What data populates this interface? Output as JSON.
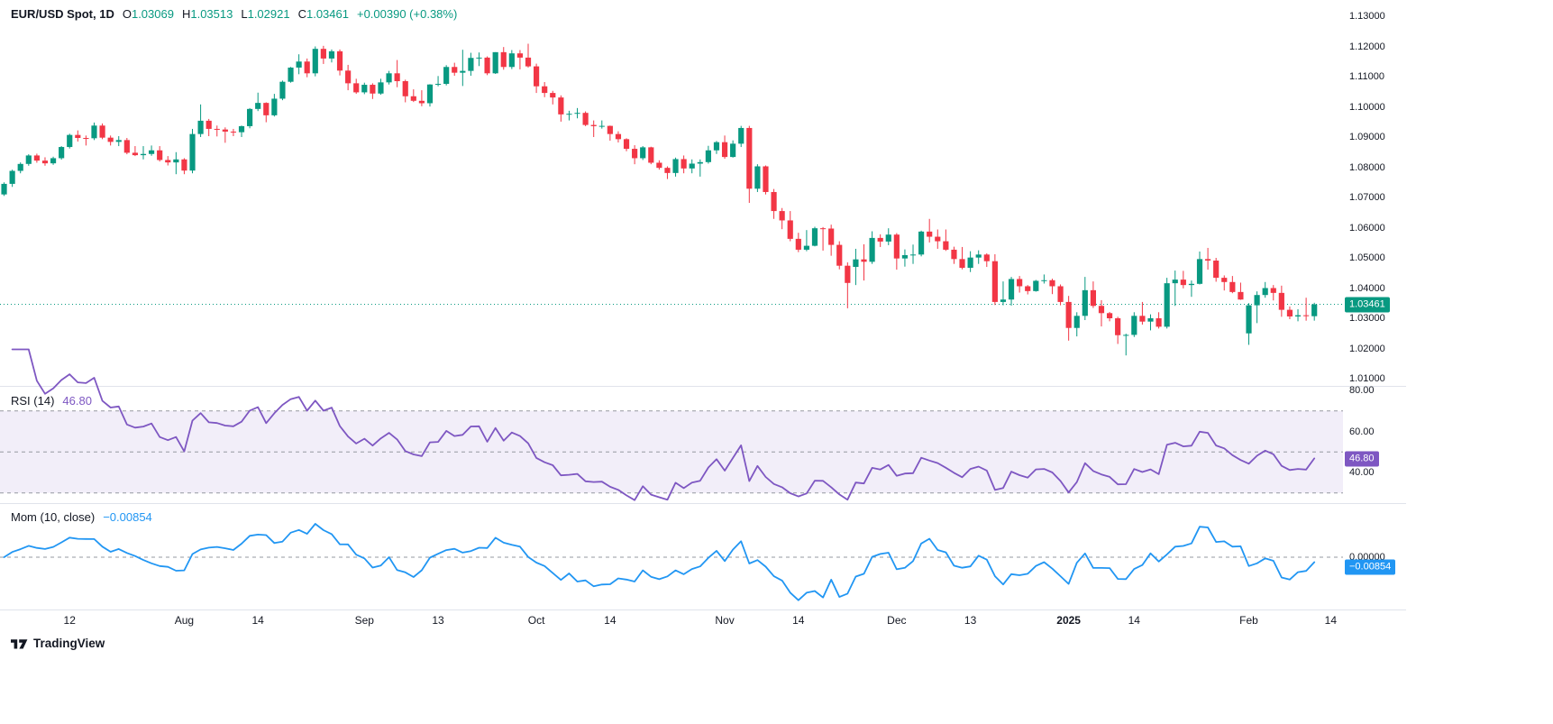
{
  "header": {
    "symbol_title": "EUR/USD Spot, 1D",
    "open_key": "O",
    "open_val": "1.03069",
    "high_key": "H",
    "high_val": "1.03513",
    "low_key": "L",
    "low_val": "1.02921",
    "close_key": "C",
    "close_val": "1.03461",
    "change_val": "+0.00390 (+0.38%)"
  },
  "colors": {
    "up": "#089981",
    "down": "#F23645",
    "rsi": "#7E57C2",
    "mom": "#2196F3",
    "grid": "#9598A1",
    "separator": "#E0E3EB",
    "text": "#131722"
  },
  "rsi_legend": {
    "title": "RSI (14)",
    "value": "46.80"
  },
  "mom_legend": {
    "title": "Mom (10, close)",
    "value": "−0.00854"
  },
  "price_axis": {
    "labels": [
      "1.13000",
      "1.12000",
      "1.11000",
      "1.10000",
      "1.09000",
      "1.08000",
      "1.07000",
      "1.06000",
      "1.05000",
      "1.04000",
      "1.03000",
      "1.02000",
      "1.01000"
    ],
    "last_label": "1.03461"
  },
  "rsi_axis": {
    "labels": [
      "80.00",
      "60.00",
      "40.00"
    ],
    "last_label": "46.80"
  },
  "mom_axis": {
    "zero_label": "0.00000",
    "last_label": "−0.00854"
  },
  "time_axis": {
    "ticks": [
      {
        "label": "12",
        "index": 8,
        "bold": false
      },
      {
        "label": "Aug",
        "index": 22,
        "bold": false
      },
      {
        "label": "14",
        "index": 31,
        "bold": false
      },
      {
        "label": "Sep",
        "index": 44,
        "bold": false
      },
      {
        "label": "13",
        "index": 53,
        "bold": false
      },
      {
        "label": "Oct",
        "index": 65,
        "bold": false
      },
      {
        "label": "14",
        "index": 74,
        "bold": false
      },
      {
        "label": "Nov",
        "index": 88,
        "bold": false
      },
      {
        "label": "14",
        "index": 97,
        "bold": false
      },
      {
        "label": "Dec",
        "index": 109,
        "bold": false
      },
      {
        "label": "13",
        "index": 118,
        "bold": false
      },
      {
        "label": "2025",
        "index": 130,
        "bold": true
      },
      {
        "label": "14",
        "index": 138,
        "bold": false
      },
      {
        "label": "Feb",
        "index": 152,
        "bold": false
      },
      {
        "label": "14",
        "index": 162,
        "bold": false
      }
    ]
  },
  "watermark": {
    "brand": "TradingView"
  },
  "chart_data": {
    "type": "candlestick",
    "symbol": "EUR/USD Spot",
    "interval": "1D",
    "slots": 164,
    "price_axis_range": [
      1.01,
      1.13
    ],
    "last_candle": {
      "open": 1.03069,
      "high": 1.03513,
      "low": 1.02921,
      "close": 1.03461,
      "change": 0.0039,
      "change_pct": 0.38
    },
    "indicators": [
      {
        "type": "rsi",
        "period": 14,
        "last": 46.8,
        "band": [
          30,
          70
        ],
        "mid": 50,
        "levels": [
          80,
          60,
          40
        ]
      },
      {
        "type": "momentum",
        "period": 10,
        "source": "close",
        "last": -0.00854,
        "zero": 0
      }
    ],
    "ohlc": [
      [
        1.071,
        1.075,
        1.0705,
        1.0745
      ],
      [
        1.0745,
        1.0792,
        1.0735,
        1.0788
      ],
      [
        1.0788,
        1.0816,
        1.078,
        1.0811
      ],
      [
        1.0811,
        1.0843,
        1.0805,
        1.0839
      ],
      [
        1.0839,
        1.0845,
        1.0815,
        1.0822
      ],
      [
        1.0822,
        1.0833,
        1.0805,
        1.0813
      ],
      [
        1.0813,
        1.0835,
        1.0808,
        1.083
      ],
      [
        1.083,
        1.087,
        1.0825,
        1.0867
      ],
      [
        1.0867,
        1.0911,
        1.0862,
        1.0907
      ],
      [
        1.0907,
        1.0922,
        1.0885,
        1.0897
      ],
      [
        1.0897,
        1.0905,
        1.0872,
        1.0896
      ],
      [
        1.0896,
        1.0948,
        1.089,
        1.0938
      ],
      [
        1.0938,
        1.0945,
        1.0893,
        1.0898
      ],
      [
        1.0898,
        1.0905,
        1.0872,
        1.0884
      ],
      [
        1.0884,
        1.0903,
        1.087,
        1.089
      ],
      [
        1.089,
        1.0897,
        1.0843,
        1.0848
      ],
      [
        1.0848,
        1.087,
        1.0837,
        1.084
      ],
      [
        1.084,
        1.087,
        1.0826,
        1.0844
      ],
      [
        1.0844,
        1.0872,
        1.0838,
        1.0856
      ],
      [
        1.0856,
        1.087,
        1.0819,
        1.0824
      ],
      [
        1.0824,
        1.0837,
        1.0806,
        1.0816
      ],
      [
        1.0816,
        1.085,
        1.0777,
        1.0826
      ],
      [
        1.0826,
        1.083,
        1.0777,
        1.0789
      ],
      [
        1.0789,
        1.0927,
        1.078,
        1.091
      ],
      [
        1.091,
        1.1008,
        1.09,
        1.0954
      ],
      [
        1.0954,
        1.096,
        1.0903,
        1.0927
      ],
      [
        1.0927,
        1.0938,
        1.0902,
        1.0925
      ],
      [
        1.0925,
        1.0932,
        1.0881,
        1.0918
      ],
      [
        1.0918,
        1.0927,
        1.0903,
        1.0916
      ],
      [
        1.0916,
        1.0938,
        1.09,
        1.0936
      ],
      [
        1.0936,
        1.0996,
        1.0929,
        1.0993
      ],
      [
        1.0993,
        1.1047,
        1.0986,
        1.1013
      ],
      [
        1.1013,
        1.1015,
        1.0949,
        1.0972
      ],
      [
        1.0972,
        1.1043,
        1.0968,
        1.1027
      ],
      [
        1.1027,
        1.1087,
        1.1022,
        1.1083
      ],
      [
        1.1083,
        1.1132,
        1.108,
        1.113
      ],
      [
        1.113,
        1.1174,
        1.1108,
        1.115
      ],
      [
        1.115,
        1.116,
        1.1098,
        1.1111
      ],
      [
        1.1111,
        1.12,
        1.1101,
        1.1192
      ],
      [
        1.1192,
        1.1202,
        1.1142,
        1.116
      ],
      [
        1.116,
        1.119,
        1.1147,
        1.1184
      ],
      [
        1.1184,
        1.119,
        1.1104,
        1.112
      ],
      [
        1.112,
        1.1139,
        1.1055,
        1.1078
      ],
      [
        1.1078,
        1.1093,
        1.1043,
        1.1048
      ],
      [
        1.1048,
        1.108,
        1.1042,
        1.1073
      ],
      [
        1.1073,
        1.1078,
        1.1026,
        1.1044
      ],
      [
        1.1044,
        1.1093,
        1.104,
        1.1081
      ],
      [
        1.1081,
        1.1119,
        1.1074,
        1.1111
      ],
      [
        1.1111,
        1.1155,
        1.1065,
        1.1085
      ],
      [
        1.1085,
        1.109,
        1.1015,
        1.1035
      ],
      [
        1.1035,
        1.1058,
        1.1016,
        1.102
      ],
      [
        1.102,
        1.1055,
        1.1002,
        1.1012
      ],
      [
        1.1012,
        1.1075,
        1.1001,
        1.1074
      ],
      [
        1.1074,
        1.1102,
        1.1068,
        1.1076
      ],
      [
        1.1076,
        1.1138,
        1.1071,
        1.1132
      ],
      [
        1.1132,
        1.1146,
        1.1103,
        1.1113
      ],
      [
        1.1113,
        1.1189,
        1.1069,
        1.1119
      ],
      [
        1.1119,
        1.1179,
        1.1103,
        1.1162
      ],
      [
        1.1162,
        1.118,
        1.1135,
        1.1163
      ],
      [
        1.1163,
        1.1167,
        1.1105,
        1.1111
      ],
      [
        1.1111,
        1.1181,
        1.1109,
        1.1181
      ],
      [
        1.1181,
        1.1198,
        1.1123,
        1.1132
      ],
      [
        1.1132,
        1.1188,
        1.1125,
        1.1177
      ],
      [
        1.1177,
        1.1188,
        1.1124,
        1.1163
      ],
      [
        1.1163,
        1.1209,
        1.113,
        1.1134
      ],
      [
        1.1134,
        1.1143,
        1.1046,
        1.1068
      ],
      [
        1.1068,
        1.1082,
        1.1032,
        1.1046
      ],
      [
        1.1046,
        1.1053,
        1.1008,
        1.1031
      ],
      [
        1.1031,
        1.1038,
        1.0951,
        1.0975
      ],
      [
        1.0975,
        1.0987,
        1.0955,
        1.0977
      ],
      [
        1.0977,
        1.0996,
        1.0962,
        1.098
      ],
      [
        1.098,
        1.0985,
        1.0936,
        1.094
      ],
      [
        1.094,
        1.0955,
        1.09,
        1.0936
      ],
      [
        1.0936,
        1.0955,
        1.0928,
        1.0937
      ],
      [
        1.0937,
        1.0938,
        1.0888,
        1.091
      ],
      [
        1.091,
        1.0919,
        1.0882,
        1.0893
      ],
      [
        1.0893,
        1.0896,
        1.0853,
        1.0861
      ],
      [
        1.0861,
        1.0873,
        1.081,
        1.083
      ],
      [
        1.083,
        1.087,
        1.0824,
        1.0866
      ],
      [
        1.0866,
        1.0868,
        1.081,
        1.0815
      ],
      [
        1.0815,
        1.0823,
        1.0792,
        1.0798
      ],
      [
        1.0798,
        1.0803,
        1.0761,
        1.0781
      ],
      [
        1.0781,
        1.0832,
        1.0769,
        1.0827
      ],
      [
        1.0827,
        1.0839,
        1.078,
        1.0796
      ],
      [
        1.0796,
        1.0826,
        1.078,
        1.0812
      ],
      [
        1.0812,
        1.0826,
        1.0769,
        1.0817
      ],
      [
        1.0817,
        1.0871,
        1.0812,
        1.0856
      ],
      [
        1.0856,
        1.0887,
        1.0844,
        1.0883
      ],
      [
        1.0883,
        1.0905,
        1.0828,
        1.0834
      ],
      [
        1.0834,
        1.0889,
        1.0832,
        1.0878
      ],
      [
        1.0878,
        1.0937,
        1.0867,
        1.093
      ],
      [
        1.093,
        1.0937,
        1.0682,
        1.0729
      ],
      [
        1.0729,
        1.081,
        1.0718,
        1.0803
      ],
      [
        1.0803,
        1.0806,
        1.071,
        1.0718
      ],
      [
        1.0718,
        1.0728,
        1.0629,
        1.0655
      ],
      [
        1.0655,
        1.0665,
        1.0595,
        1.0624
      ],
      [
        1.0624,
        1.0655,
        1.0555,
        1.0563
      ],
      [
        1.0563,
        1.0583,
        1.0519,
        1.0527
      ],
      [
        1.0527,
        1.0592,
        1.0522,
        1.054
      ],
      [
        1.054,
        1.0603,
        1.0538,
        1.0598
      ],
      [
        1.0598,
        1.0602,
        1.0524,
        1.0597
      ],
      [
        1.0597,
        1.061,
        1.0507,
        1.0543
      ],
      [
        1.0543,
        1.0555,
        1.0462,
        1.0474
      ],
      [
        1.0474,
        1.0485,
        1.0333,
        1.0417
      ],
      [
        1.047,
        1.053,
        1.041,
        1.0495
      ],
      [
        1.0495,
        1.0545,
        1.0425,
        1.0487
      ],
      [
        1.0487,
        1.0588,
        1.048,
        1.0566
      ],
      [
        1.0566,
        1.0578,
        1.0536,
        1.0554
      ],
      [
        1.0554,
        1.0598,
        1.0542,
        1.0577
      ],
      [
        1.0577,
        1.0582,
        1.0461,
        1.0498
      ],
      [
        1.0498,
        1.0528,
        1.0471,
        1.0509
      ],
      [
        1.0509,
        1.0544,
        1.048,
        1.0511
      ],
      [
        1.0511,
        1.059,
        1.0505,
        1.0587
      ],
      [
        1.0587,
        1.0629,
        1.0551,
        1.057
      ],
      [
        1.057,
        1.0594,
        1.053,
        1.0555
      ],
      [
        1.0555,
        1.0594,
        1.0523,
        1.0527
      ],
      [
        1.0527,
        1.0537,
        1.048,
        1.0496
      ],
      [
        1.0496,
        1.0536,
        1.0462,
        1.0467
      ],
      [
        1.0467,
        1.0522,
        1.0453,
        1.0501
      ],
      [
        1.0501,
        1.0525,
        1.048,
        1.0511
      ],
      [
        1.0511,
        1.0515,
        1.047,
        1.0489
      ],
      [
        1.0489,
        1.0512,
        1.0344,
        1.0354
      ],
      [
        1.0354,
        1.0422,
        1.0343,
        1.0362
      ],
      [
        1.0362,
        1.0437,
        1.0342,
        1.043
      ],
      [
        1.043,
        1.044,
        1.0385,
        1.0406
      ],
      [
        1.0406,
        1.041,
        1.0379,
        1.039
      ],
      [
        1.039,
        1.0427,
        1.0388,
        1.0424
      ],
      [
        1.0424,
        1.0445,
        1.0415,
        1.0426
      ],
      [
        1.0426,
        1.0431,
        1.038,
        1.0406
      ],
      [
        1.0406,
        1.0412,
        1.0343,
        1.0354
      ],
      [
        1.0354,
        1.0374,
        1.0226,
        1.0268
      ],
      [
        1.0268,
        1.032,
        1.024,
        1.0308
      ],
      [
        1.0308,
        1.0437,
        1.0294,
        1.0393
      ],
      [
        1.0393,
        1.0422,
        1.0334,
        1.0341
      ],
      [
        1.0341,
        1.036,
        1.0273,
        1.0317
      ],
      [
        1.0317,
        1.0321,
        1.029,
        1.03
      ],
      [
        1.03,
        1.0305,
        1.0215,
        1.0244
      ],
      [
        1.0244,
        1.0249,
        1.0177,
        1.0245
      ],
      [
        1.0245,
        1.032,
        1.0238,
        1.0308
      ],
      [
        1.0308,
        1.0354,
        1.0279,
        1.0289
      ],
      [
        1.0289,
        1.0313,
        1.026,
        1.03
      ],
      [
        1.03,
        1.032,
        1.0266,
        1.0272
      ],
      [
        1.0272,
        1.0434,
        1.0266,
        1.0416
      ],
      [
        1.0416,
        1.0458,
        1.0341,
        1.0428
      ],
      [
        1.0428,
        1.0457,
        1.0399,
        1.041
      ],
      [
        1.041,
        1.0425,
        1.0371,
        1.0414
      ],
      [
        1.0414,
        1.0521,
        1.0412,
        1.0496
      ],
      [
        1.0496,
        1.0533,
        1.0461,
        1.0491
      ],
      [
        1.0491,
        1.05,
        1.0421,
        1.0434
      ],
      [
        1.0434,
        1.0442,
        1.0392,
        1.042
      ],
      [
        1.042,
        1.044,
        1.0383,
        1.0387
      ],
      [
        1.0387,
        1.0418,
        1.0361,
        1.0362
      ],
      [
        1.025,
        1.035,
        1.0212,
        1.0343
      ],
      [
        1.0343,
        1.0389,
        1.0284,
        1.0377
      ],
      [
        1.0377,
        1.042,
        1.0368,
        1.04
      ],
      [
        1.04,
        1.041,
        1.0359,
        1.0384
      ],
      [
        1.0384,
        1.0408,
        1.0305,
        1.0328
      ],
      [
        1.0328,
        1.0339,
        1.0297,
        1.0306
      ],
      [
        1.0306,
        1.033,
        1.029,
        1.031
      ],
      [
        1.031,
        1.0368,
        1.0292,
        1.0307
      ],
      [
        1.03069,
        1.03513,
        1.02921,
        1.03461
      ]
    ]
  }
}
